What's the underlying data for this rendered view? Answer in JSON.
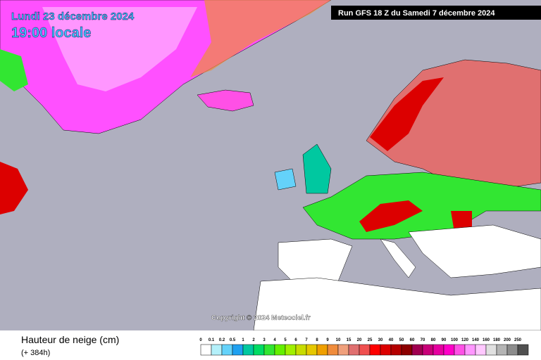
{
  "header": {
    "date": "Lundi 23 décembre 2024",
    "time": "19:00 locale",
    "run": "Run GFS 18 Z du Samedi 7 décembre 2024"
  },
  "map": {
    "copyright": "Copyright © 2024 Meteociel.fr"
  },
  "legend": {
    "title": "Hauteur de neige (cm)",
    "subtitle": "(+ 384h)",
    "items": [
      {
        "label": "0",
        "color": "#ffffff"
      },
      {
        "label": "0.1",
        "color": "#b4f0fa"
      },
      {
        "label": "0.2",
        "color": "#64d2fa"
      },
      {
        "label": "0.5",
        "color": "#1ea0f0"
      },
      {
        "label": "1",
        "color": "#00c8a0"
      },
      {
        "label": "2",
        "color": "#00dc64"
      },
      {
        "label": "3",
        "color": "#32e632"
      },
      {
        "label": "4",
        "color": "#64f000"
      },
      {
        "label": "5",
        "color": "#a0f000"
      },
      {
        "label": "6",
        "color": "#c8dc00"
      },
      {
        "label": "7",
        "color": "#e6c800"
      },
      {
        "label": "8",
        "color": "#f0a000"
      },
      {
        "label": "9",
        "color": "#f08c3c"
      },
      {
        "label": "10",
        "color": "#f0a07c"
      },
      {
        "label": "15",
        "color": "#e07070"
      },
      {
        "label": "20",
        "color": "#f05050"
      },
      {
        "label": "25",
        "color": "#ff0000"
      },
      {
        "label": "30",
        "color": "#dc0000"
      },
      {
        "label": "40",
        "color": "#b40000"
      },
      {
        "label": "50",
        "color": "#8c0000"
      },
      {
        "label": "60",
        "color": "#a00050"
      },
      {
        "label": "70",
        "color": "#c80078"
      },
      {
        "label": "80",
        "color": "#e600a0"
      },
      {
        "label": "90",
        "color": "#ff00c8"
      },
      {
        "label": "100",
        "color": "#ff50e6"
      },
      {
        "label": "120",
        "color": "#ff96ff"
      },
      {
        "label": "140",
        "color": "#ffc8ff"
      },
      {
        "label": "160",
        "color": "#e0e0e0"
      },
      {
        "label": "180",
        "color": "#b4b4b4"
      },
      {
        "label": "200",
        "color": "#8c8c8c"
      },
      {
        "label": "250",
        "color": "#505050"
      }
    ]
  }
}
